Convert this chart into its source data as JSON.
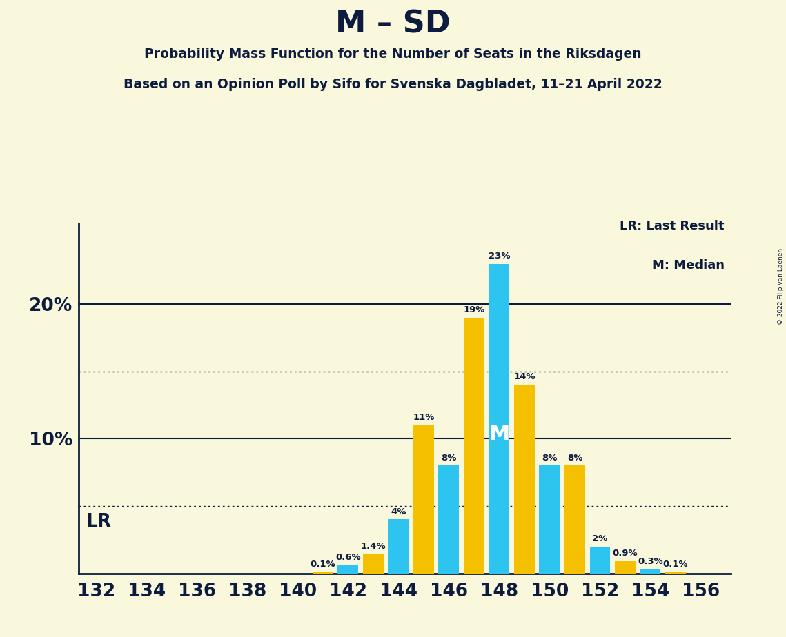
{
  "title": "M – SD",
  "subtitle1": "Probability Mass Function for the Number of Seats in the Riksdagen",
  "subtitle2": "Based on an Opinion Poll by Sifo for Svenska Dagbladet, 11–21 April 2022",
  "copyright": "© 2022 Filip van Laenen",
  "legend_lr": "LR: Last Result",
  "legend_m": "M: Median",
  "lr_label": "LR",
  "median_label": "M",
  "background_color": "#FAF8DC",
  "cyan_color": "#2EC4F0",
  "yellow_color": "#F5C000",
  "text_color": "#0D1B3E",
  "median_seat": 148,
  "seats": [
    132,
    133,
    134,
    135,
    136,
    137,
    138,
    139,
    140,
    141,
    142,
    143,
    144,
    145,
    146,
    147,
    148,
    149,
    150,
    151,
    152,
    153,
    154,
    155,
    156
  ],
  "probabilities": [
    0.0,
    0.0,
    0.0,
    0.0,
    0.0,
    0.0,
    0.0,
    0.0,
    0.0,
    0.1,
    0.6,
    1.4,
    4.0,
    11.0,
    8.0,
    19.0,
    23.0,
    14.0,
    8.0,
    8.0,
    2.0,
    0.9,
    0.3,
    0.1,
    0.0
  ],
  "bar_colors": [
    "#2EC4F0",
    "#F5C000",
    "#2EC4F0",
    "#F5C000",
    "#2EC4F0",
    "#F5C000",
    "#2EC4F0",
    "#F5C000",
    "#2EC4F0",
    "#F5C000",
    "#2EC4F0",
    "#F5C000",
    "#2EC4F0",
    "#F5C000",
    "#2EC4F0",
    "#F5C000",
    "#2EC4F0",
    "#F5C000",
    "#2EC4F0",
    "#F5C000",
    "#2EC4F0",
    "#F5C000",
    "#2EC4F0",
    "#F5C000",
    "#2EC4F0"
  ],
  "xlim": [
    131.3,
    157.2
  ],
  "ylim": [
    0,
    26.5
  ],
  "dotted_lines": [
    5.0,
    15.0
  ],
  "solid_lines": [
    10.0,
    20.0
  ],
  "bar_width": 0.82
}
